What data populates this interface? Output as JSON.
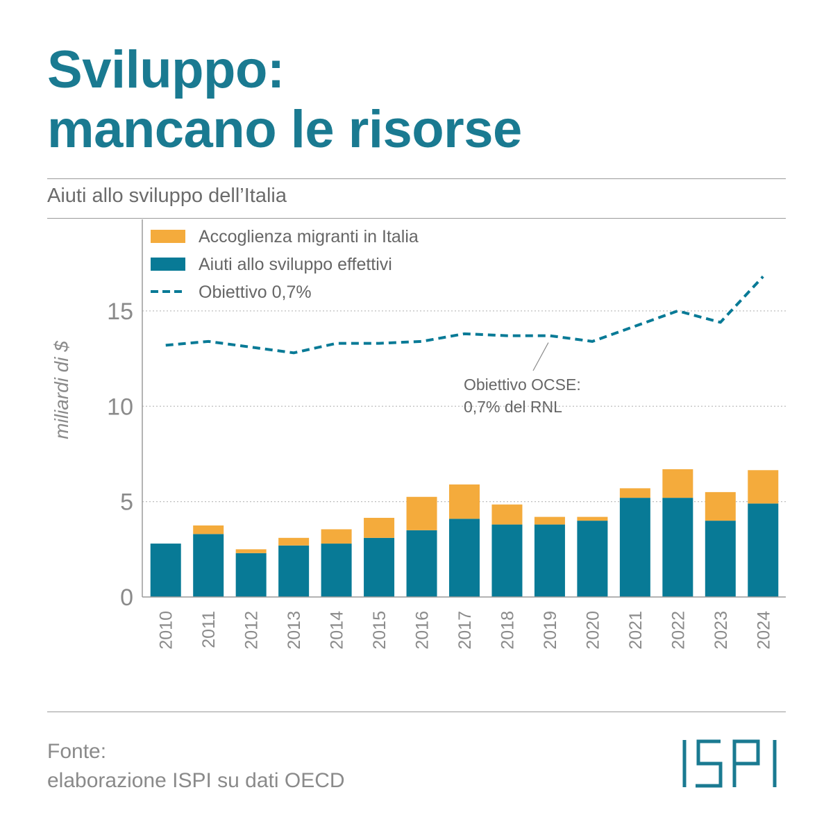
{
  "header": {
    "title_line1": "Sviluppo:",
    "title_line2": "mancano le risorse",
    "subtitle": "Aiuti allo sviluppo dell’Italia"
  },
  "footer": {
    "source_line1": "Fonte:",
    "source_line2": "elaborazione ISPI su dati OECD",
    "logo_text": "ISPI"
  },
  "colors": {
    "teal": "#087a96",
    "orange": "#f4ab3c",
    "title": "#1a7a91",
    "grid": "#bdbdbd"
  },
  "chart_data": {
    "type": "bar",
    "stacked": true,
    "ylabel": "miliardi di $",
    "ylim": [
      0,
      20
    ],
    "yticks": [
      0,
      5,
      10,
      15
    ],
    "grid": "horizontal dotted",
    "legend_position": "top-left",
    "categories": [
      "2010",
      "2011",
      "2012",
      "2013",
      "2014",
      "2015",
      "2016",
      "2017",
      "2018",
      "2019",
      "2020",
      "2021",
      "2022",
      "2023",
      "2024"
    ],
    "series": [
      {
        "name": "Aiuti allo sviluppo effettivi",
        "color": "#087a96",
        "values": [
          2.8,
          3.3,
          2.3,
          2.7,
          2.8,
          3.1,
          3.5,
          4.1,
          3.8,
          3.8,
          4.0,
          5.2,
          5.2,
          4.0,
          4.9
        ]
      },
      {
        "name": "Accoglienza migranti in Italia",
        "color": "#f4ab3c",
        "values": [
          0.0,
          0.45,
          0.2,
          0.4,
          0.75,
          1.05,
          1.75,
          1.8,
          1.05,
          0.4,
          0.2,
          0.5,
          1.5,
          1.5,
          1.75
        ]
      },
      {
        "name": "Obiettivo 0,7%",
        "type": "line",
        "style": "dashed",
        "color": "#087a96",
        "values": [
          13.2,
          13.4,
          13.1,
          12.8,
          13.3,
          13.3,
          13.4,
          13.8,
          13.7,
          13.7,
          13.4,
          14.2,
          15.0,
          14.4,
          16.8
        ]
      }
    ],
    "annotation": {
      "line1": "Obiettivo OCSE:",
      "line2": "0,7% del RNL",
      "points_to": "2019"
    }
  }
}
